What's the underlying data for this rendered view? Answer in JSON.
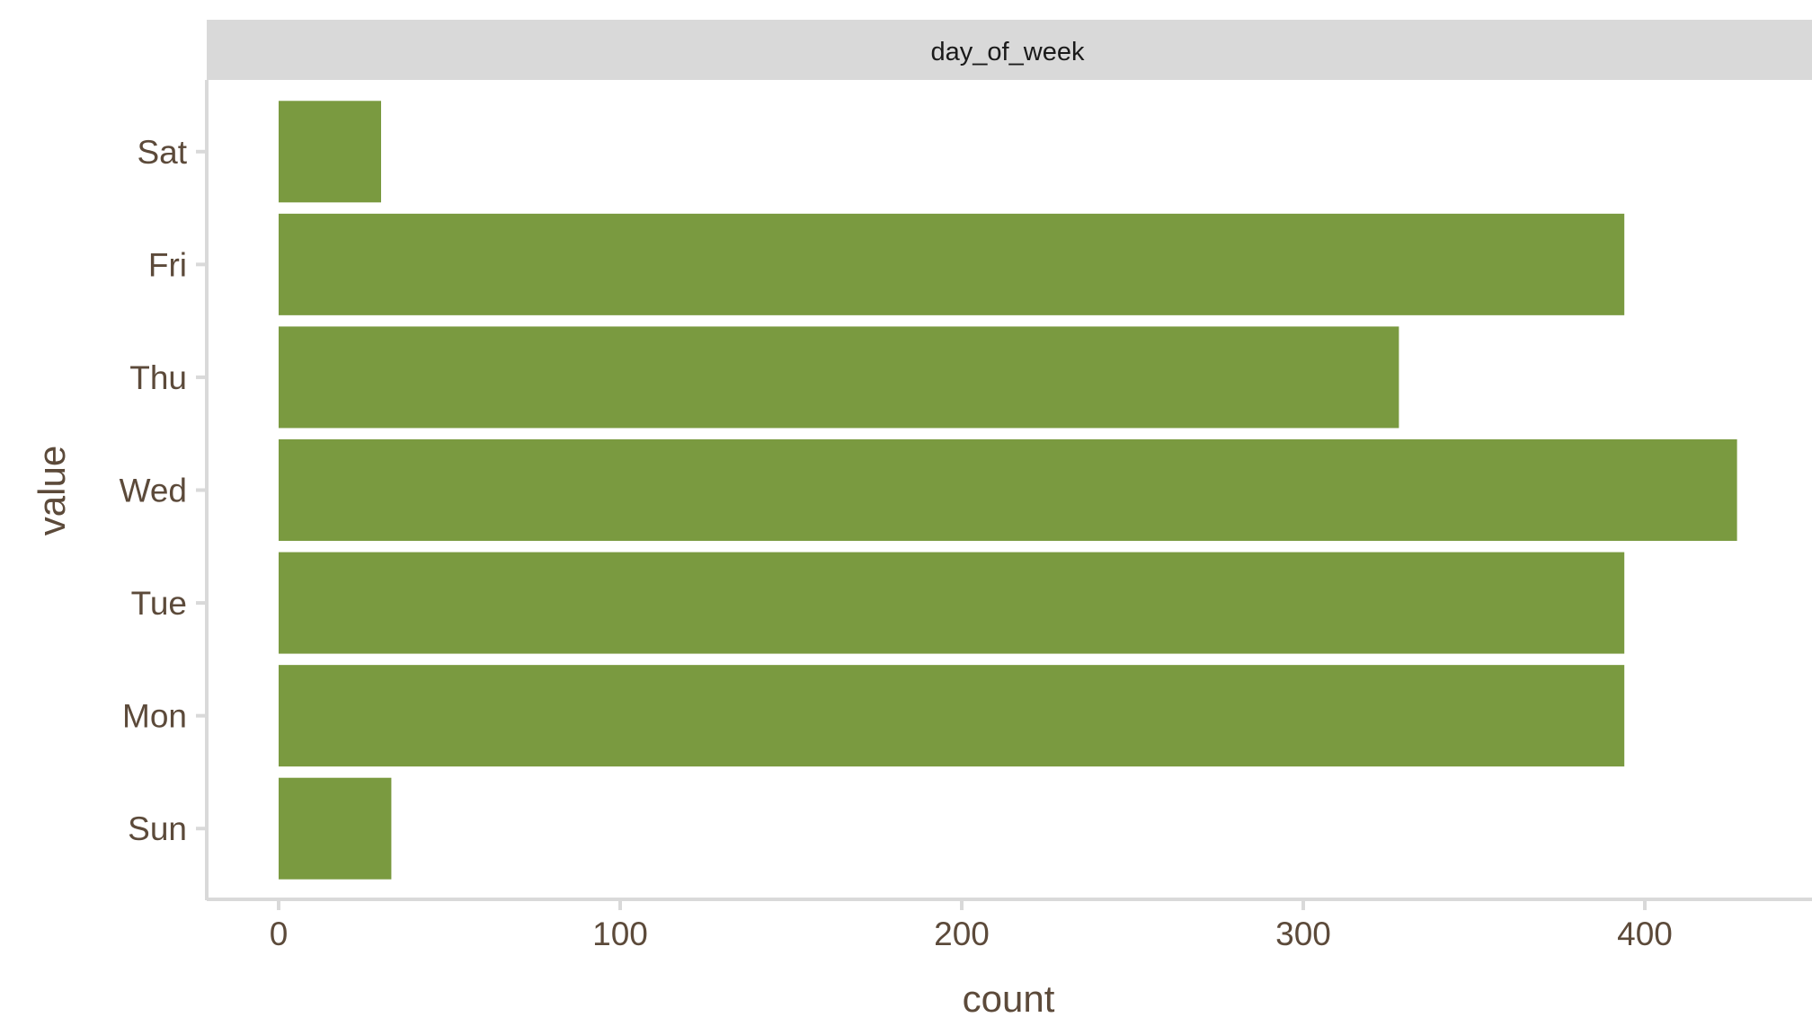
{
  "chart_data": {
    "type": "bar",
    "orientation": "horizontal",
    "facet": "day_of_week",
    "categories": [
      "Sun",
      "Mon",
      "Tue",
      "Wed",
      "Thu",
      "Fri",
      "Sat"
    ],
    "values": [
      33,
      394,
      394,
      427,
      328,
      394,
      30
    ],
    "xlabel": "count",
    "ylabel": "value",
    "xlim": [
      -21,
      445
    ],
    "xticks": [
      0,
      100,
      200,
      300,
      400
    ],
    "grid": false,
    "legend": "none",
    "bar_color": "#7a9a40",
    "strip_color": "#d9d9d9",
    "axis_color": "#d9d9d9",
    "text_color": "#5c4a3a"
  }
}
